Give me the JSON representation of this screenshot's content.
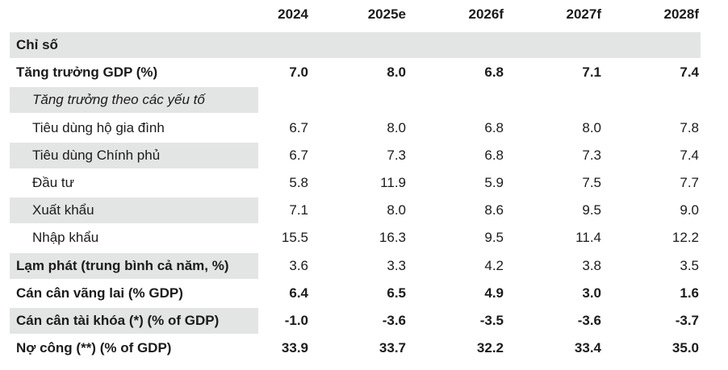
{
  "columns": [
    "2024",
    "2025e",
    "2026f",
    "2027f",
    "2028f"
  ],
  "rows": [
    {
      "label": "Chỉ số",
      "style": "bold",
      "shade": "full",
      "values": []
    },
    {
      "label": "Tăng trưởng GDP (%)",
      "style": "bold",
      "shade": "none",
      "values": [
        "7.0",
        "8.0",
        "6.8",
        "7.1",
        "7.4"
      ]
    },
    {
      "label": "Tăng trưởng theo các yếu tố",
      "style": "italic",
      "shade": "label",
      "values": []
    },
    {
      "label": "Tiêu dùng hộ gia đình",
      "style": "indent",
      "shade": "none",
      "values": [
        "6.7",
        "8.0",
        "6.8",
        "8.0",
        "7.8"
      ]
    },
    {
      "label": "Tiêu dùng Chính phủ",
      "style": "indent",
      "shade": "label",
      "values": [
        "6.7",
        "7.3",
        "6.8",
        "7.3",
        "7.4"
      ]
    },
    {
      "label": "Đầu tư",
      "style": "indent",
      "shade": "none",
      "values": [
        "5.8",
        "11.9",
        "5.9",
        "7.5",
        "7.7"
      ]
    },
    {
      "label": "Xuất khẩu",
      "style": "indent",
      "shade": "label",
      "values": [
        "7.1",
        "8.0",
        "8.6",
        "9.5",
        "9.0"
      ]
    },
    {
      "label": "Nhập khẩu",
      "style": "indent",
      "shade": "none",
      "values": [
        "15.5",
        "16.3",
        "9.5",
        "11.4",
        "12.2"
      ]
    },
    {
      "label": "Lạm phát (trung bình cả năm, %)",
      "style": "bold",
      "shade": "label",
      "values": [
        "3.6",
        "3.3",
        "4.2",
        "3.8",
        "3.5"
      ]
    },
    {
      "label": "Cán cân vãng lai (% GDP)",
      "style": "bold",
      "shade": "none",
      "values": [
        "6.4",
        "6.5",
        "4.9",
        "3.0",
        "1.6"
      ],
      "bold_values": true
    },
    {
      "label": "Cán cân tài khóa (*) (% of GDP)",
      "style": "bold",
      "shade": "label",
      "values": [
        "-1.0",
        "-3.6",
        "-3.5",
        "-3.6",
        "-3.7"
      ],
      "bold_values": true
    },
    {
      "label": "Nợ công (**) (% of GDP)",
      "style": "bold",
      "shade": "none",
      "values": [
        "33.9",
        "33.7",
        "32.2",
        "33.4",
        "35.0"
      ],
      "bold_values": true
    }
  ]
}
